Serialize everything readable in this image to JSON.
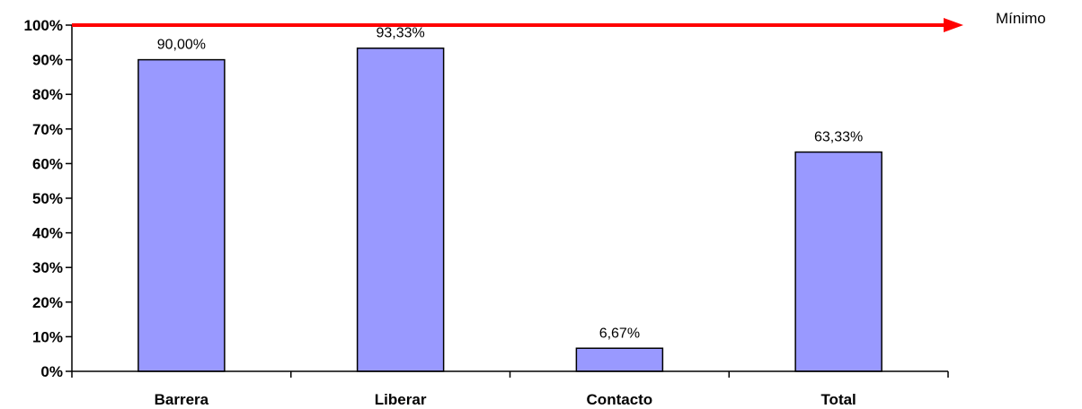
{
  "chart_data": {
    "type": "bar",
    "categories": [
      "Barrera",
      "Liberar",
      "Contacto",
      "Total"
    ],
    "values": [
      90.0,
      93.33,
      6.67,
      63.33
    ],
    "data_labels": [
      "90,00%",
      "93,33%",
      "6,67%",
      "63,33%"
    ],
    "yticks": [
      "0%",
      "10%",
      "20%",
      "30%",
      "40%",
      "50%",
      "60%",
      "70%",
      "80%",
      "90%",
      "100%"
    ],
    "ylim": [
      0,
      100
    ],
    "grid": false,
    "legend": "none",
    "reference_line": {
      "label": "Mínimo",
      "value": 100
    },
    "colors": {
      "bar_fill": "#9999FF",
      "bar_stroke": "#000000",
      "reference_line": "#FF0000"
    }
  }
}
